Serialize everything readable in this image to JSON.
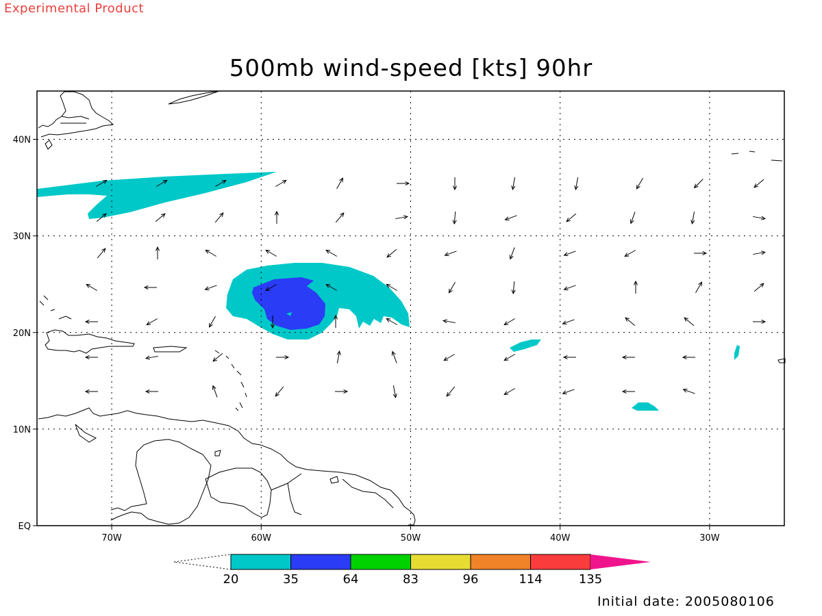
{
  "header": {
    "experimental_label": "Experimental Product",
    "title": "500mb wind-speed [kts] 90hr"
  },
  "map": {
    "lon_range": [
      -75,
      -25
    ],
    "lat_range": [
      0,
      45
    ],
    "lon_ticks": [
      {
        "value": -70,
        "label": "70W"
      },
      {
        "value": -60,
        "label": "60W"
      },
      {
        "value": -50,
        "label": "50W"
      },
      {
        "value": -40,
        "label": "40W"
      },
      {
        "value": -30,
        "label": "30W"
      }
    ],
    "lat_ticks": [
      {
        "value": 40,
        "label": "40N"
      },
      {
        "value": 30,
        "label": "30N"
      },
      {
        "value": 20,
        "label": "20N"
      },
      {
        "value": 10,
        "label": "10N"
      },
      {
        "value": 0,
        "label": "EQ"
      }
    ],
    "grid": "dotted"
  },
  "colorbar": {
    "levels": [
      "20",
      "35",
      "64",
      "83",
      "96",
      "114",
      "135"
    ],
    "colors": [
      "#00c8c8",
      "#2a3cf5",
      "#00d200",
      "#e6dc32",
      "#f08228",
      "#fa3c3c",
      "#f0148c"
    ]
  },
  "footer": {
    "initial_date": "Initial date: 2005080106"
  }
}
